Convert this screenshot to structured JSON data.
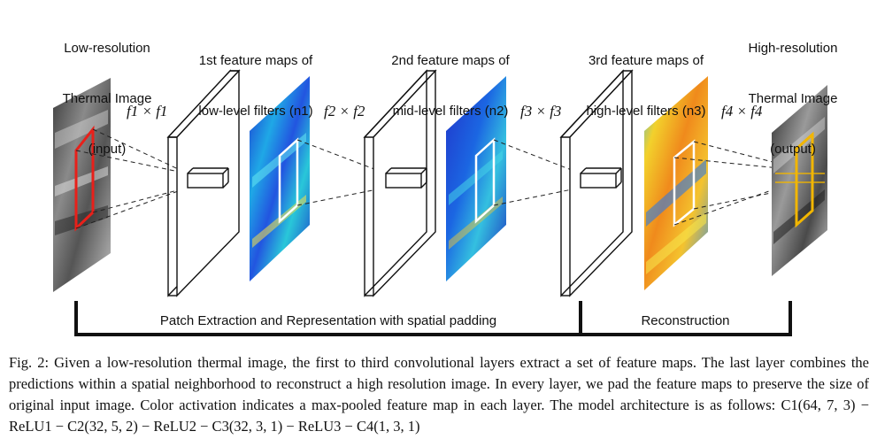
{
  "labels": {
    "input_line1": "Low-resolution",
    "input_line2": "Thermal Image",
    "input_line3": "(input)",
    "fm1_line1": "1st feature maps of",
    "fm1_line2": "low-level filters (n1)",
    "fm2_line1": "2nd feature maps of",
    "fm2_line2": "mid-level filters (n2)",
    "fm3_line1": "3rd feature maps of",
    "fm3_line2": "high-level filters (n3)",
    "output_line1": "High-resolution",
    "output_line2": "Thermal Image",
    "output_line3": "(output)"
  },
  "filters": {
    "f1": "f1 × f1",
    "f2": "f2 × f2",
    "f3": "f3 × f3",
    "f4": "f4 × f4"
  },
  "stages": {
    "patch_extraction": "Patch Extraction and Representation with spatial padding",
    "reconstruction": "Reconstruction"
  },
  "caption": {
    "prefix": "Fig. 2:",
    "text": "Given a low-resolution thermal image, the first to third convolutional layers extract a set of feature maps. The last layer combines the predictions within a spatial neighborhood to reconstruct a high resolution image. In every layer, we pad the feature maps to preserve the size of original input image. Color activation indicates a max-pooled feature map in each layer. The model architecture is as follows: C1(64, 7, 3) − ReLU1 − C2(32, 5, 2) − ReLU2 − C3(32, 3, 1) − ReLU3 − C4(1, 3, 1)"
  },
  "colors": {
    "input_box": "#e8201a",
    "output_box": "#f2b600",
    "feature_map_blue": "#1a3fd6",
    "feature_map_warm": "#f0a020"
  }
}
